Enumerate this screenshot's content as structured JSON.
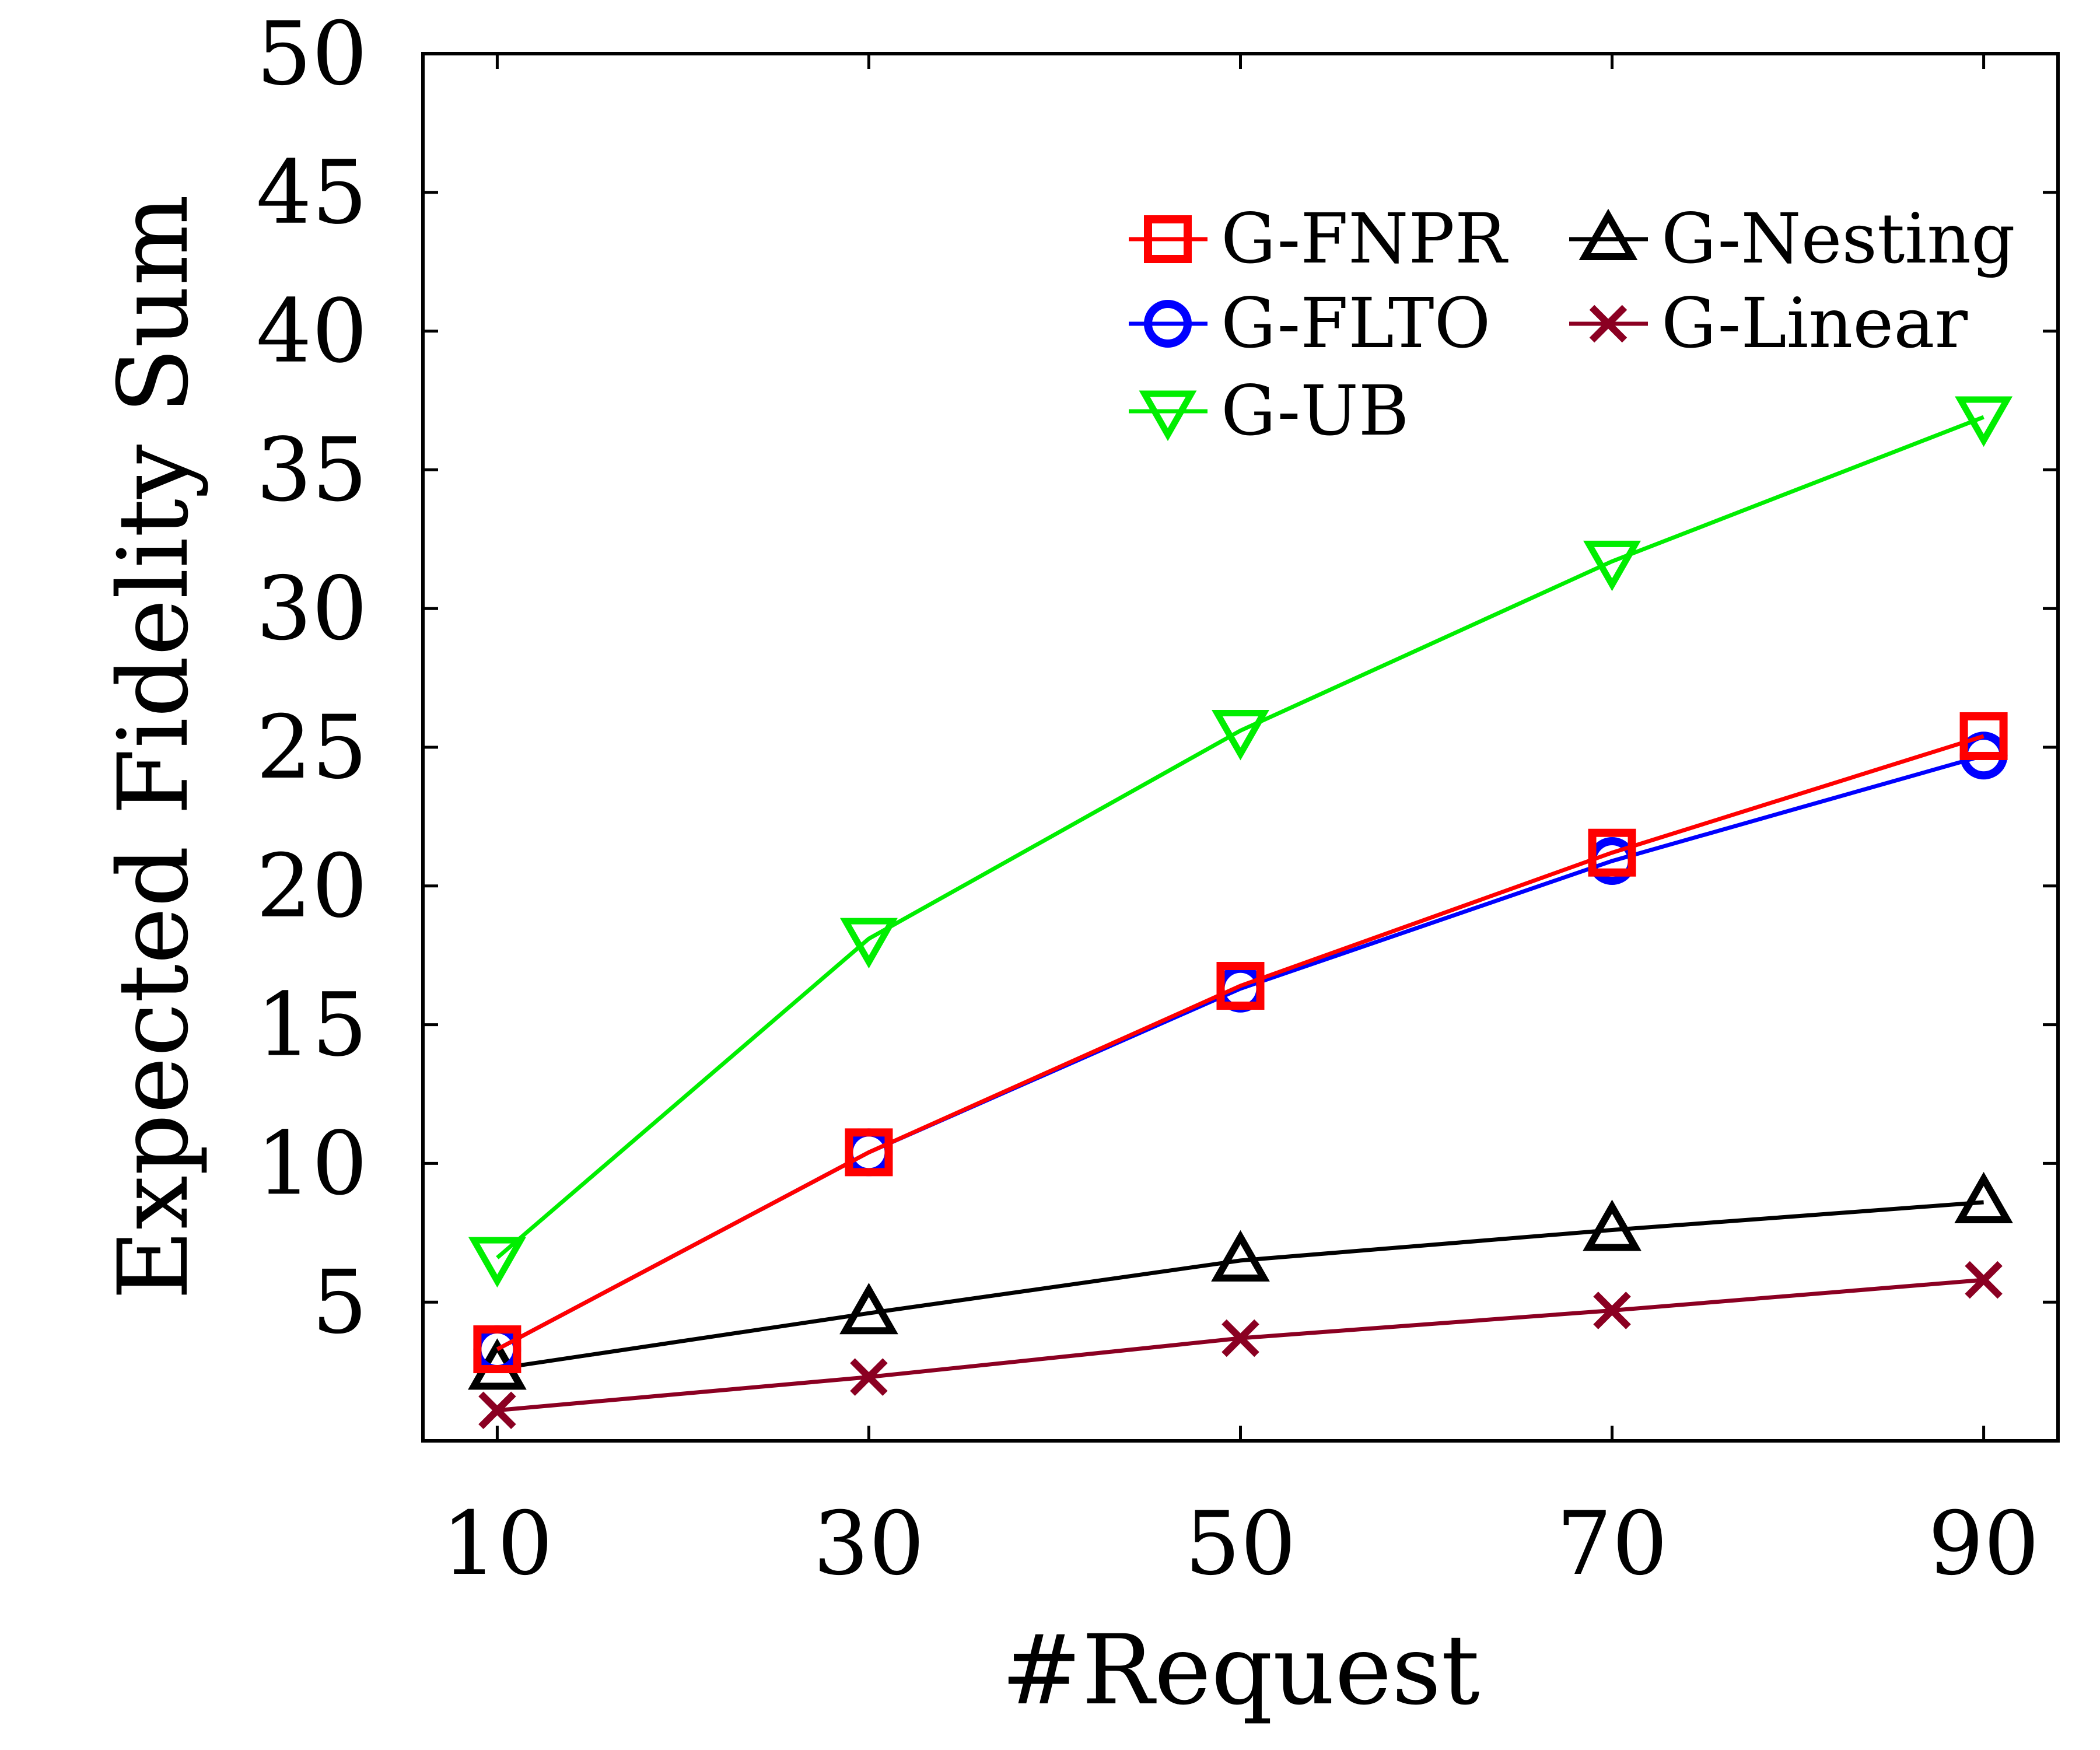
{
  "chart_data": {
    "type": "line",
    "xlabel": "#Request",
    "ylabel": "Expected Fidelity Sum",
    "x": [
      10,
      30,
      50,
      70,
      90
    ],
    "xlim": [
      6,
      94
    ],
    "ylim": [
      0,
      50
    ],
    "x_ticks": [
      10,
      30,
      50,
      70,
      90
    ],
    "y_ticks": [
      5,
      10,
      15,
      20,
      25,
      30,
      35,
      40,
      45,
      50
    ],
    "grid": false,
    "legend_position": "top-right",
    "series": [
      {
        "name": "G-FNPR",
        "color": "#ff0000",
        "marker": "square",
        "values": [
          3.3,
          10.4,
          16.4,
          21.2,
          25.4
        ]
      },
      {
        "name": "G-FLTO",
        "color": "#0000ff",
        "marker": "circle",
        "values": [
          3.3,
          10.4,
          16.3,
          20.9,
          24.7
        ]
      },
      {
        "name": "G-UB",
        "color": "#00ee00",
        "marker": "triangle-down",
        "values": [
          6.6,
          18.1,
          25.6,
          31.7,
          36.9
        ]
      },
      {
        "name": "G-Nesting",
        "color": "#000000",
        "marker": "triangle-up",
        "values": [
          2.6,
          4.6,
          6.5,
          7.6,
          8.6
        ]
      },
      {
        "name": "G-Linear",
        "color": "#8b0022",
        "marker": "x",
        "values": [
          1.1,
          2.3,
          3.7,
          4.7,
          5.8
        ]
      }
    ]
  }
}
